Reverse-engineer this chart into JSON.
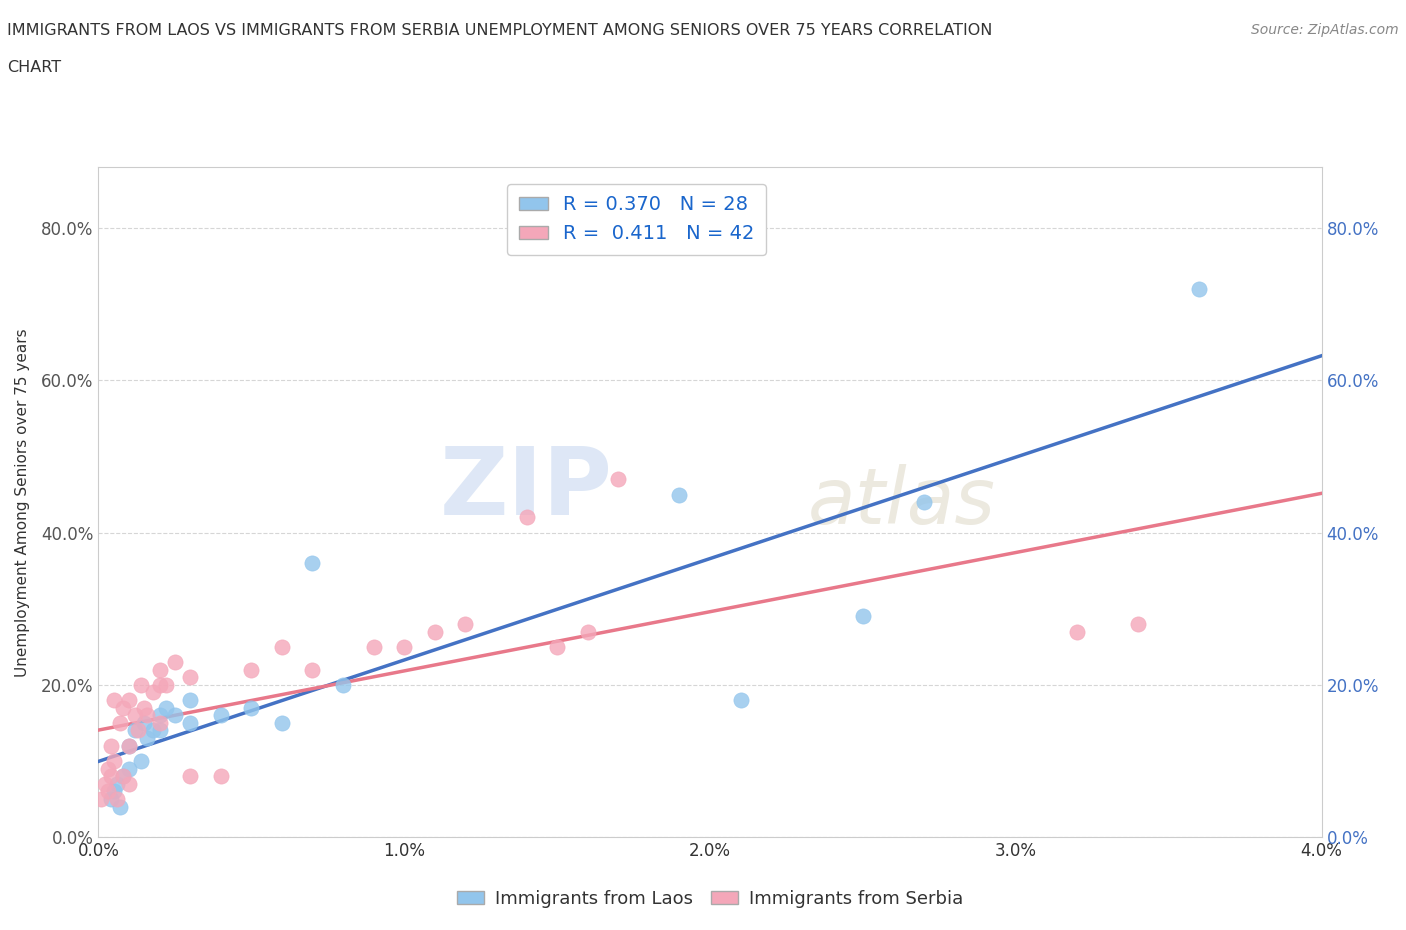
{
  "title_line1": "IMMIGRANTS FROM LAOS VS IMMIGRANTS FROM SERBIA UNEMPLOYMENT AMONG SENIORS OVER 75 YEARS CORRELATION",
  "title_line2": "CHART",
  "source_text": "Source: ZipAtlas.com",
  "ylabel": "Unemployment Among Seniors over 75 years",
  "xlim": [
    0.0,
    0.04
  ],
  "ylim": [
    0.0,
    0.88
  ],
  "xticks": [
    0.0,
    0.01,
    0.02,
    0.03,
    0.04
  ],
  "xtick_labels": [
    "0.0%",
    "1.0%",
    "2.0%",
    "3.0%",
    "4.0%"
  ],
  "ytick_labels": [
    "0.0%",
    "20.0%",
    "40.0%",
    "60.0%",
    "80.0%"
  ],
  "yticks": [
    0.0,
    0.2,
    0.4,
    0.6,
    0.8
  ],
  "laos_color": "#92C5EC",
  "serbia_color": "#F4A7B9",
  "laos_line_color": "#4472C4",
  "serbia_line_color": "#E8788A",
  "laos_R": 0.37,
  "laos_N": 28,
  "serbia_R": 0.411,
  "serbia_N": 42,
  "laos_x": [
    0.0004,
    0.0005,
    0.0006,
    0.0007,
    0.0008,
    0.001,
    0.001,
    0.0012,
    0.0014,
    0.0015,
    0.0016,
    0.0018,
    0.002,
    0.002,
    0.0022,
    0.0025,
    0.003,
    0.003,
    0.004,
    0.005,
    0.006,
    0.007,
    0.008,
    0.019,
    0.021,
    0.025,
    0.027,
    0.036
  ],
  "laos_y": [
    0.05,
    0.06,
    0.07,
    0.04,
    0.08,
    0.09,
    0.12,
    0.14,
    0.1,
    0.15,
    0.13,
    0.14,
    0.14,
    0.16,
    0.17,
    0.16,
    0.15,
    0.18,
    0.16,
    0.17,
    0.15,
    0.36,
    0.2,
    0.45,
    0.18,
    0.29,
    0.44,
    0.72
  ],
  "serbia_x": [
    0.0001,
    0.0002,
    0.0003,
    0.0003,
    0.0004,
    0.0004,
    0.0005,
    0.0005,
    0.0006,
    0.0007,
    0.0008,
    0.0008,
    0.001,
    0.001,
    0.001,
    0.0012,
    0.0013,
    0.0014,
    0.0015,
    0.0016,
    0.0018,
    0.002,
    0.002,
    0.002,
    0.0022,
    0.0025,
    0.003,
    0.003,
    0.004,
    0.005,
    0.006,
    0.007,
    0.009,
    0.01,
    0.011,
    0.012,
    0.014,
    0.015,
    0.016,
    0.017,
    0.032,
    0.034
  ],
  "serbia_y": [
    0.05,
    0.07,
    0.06,
    0.09,
    0.08,
    0.12,
    0.1,
    0.18,
    0.05,
    0.15,
    0.08,
    0.17,
    0.07,
    0.12,
    0.18,
    0.16,
    0.14,
    0.2,
    0.17,
    0.16,
    0.19,
    0.15,
    0.2,
    0.22,
    0.2,
    0.23,
    0.21,
    0.08,
    0.08,
    0.22,
    0.25,
    0.22,
    0.25,
    0.25,
    0.27,
    0.28,
    0.42,
    0.25,
    0.27,
    0.47,
    0.27,
    0.28
  ],
  "watermark_zip": "ZIP",
  "watermark_atlas": "atlas",
  "right_tick_color": "#4472C4",
  "left_tick_color": "#555555"
}
